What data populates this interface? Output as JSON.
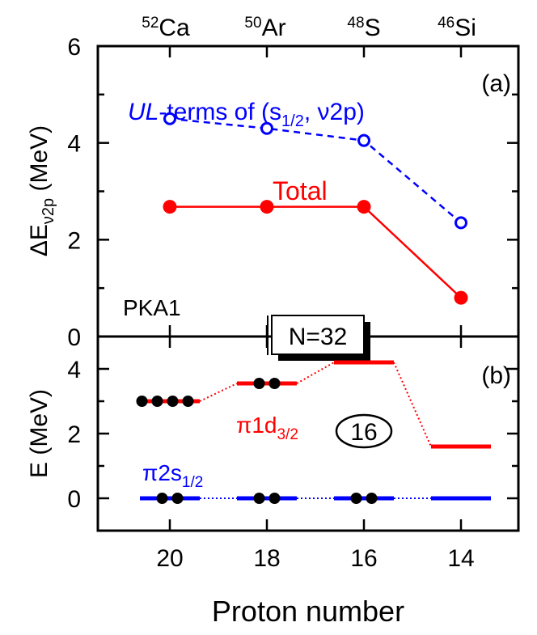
{
  "chart_data": [
    {
      "panel": "(a)",
      "type": "line",
      "x": [
        20,
        18,
        16,
        14
      ],
      "ylabel": {
        "main": "ΔE",
        "sub": "ν2p",
        "unit": " (MeV)"
      },
      "ylim": [
        0,
        6
      ],
      "yticks": [
        "0",
        "2",
        "4",
        "6"
      ],
      "top_tick_labels": [
        {
          "sup": "52",
          "name": "Ca"
        },
        {
          "sup": "50",
          "name": "Ar"
        },
        {
          "sup": "48",
          "name": "S"
        },
        {
          "sup": "46",
          "name": "Si"
        }
      ],
      "series": [
        {
          "name_parts": {
            "italic": "UL",
            "rest": "-terms of (s",
            "sub": "1/2",
            "tail": ", ν2p)"
          },
          "x": [
            20,
            18,
            16,
            14
          ],
          "y": [
            4.5,
            4.3,
            4.05,
            2.35
          ],
          "color": "#0000ff",
          "style": "dashed",
          "marker": "open-circle"
        },
        {
          "name": "Total",
          "x": [
            20,
            18,
            16,
            14
          ],
          "y": [
            2.68,
            2.68,
            2.68,
            0.8
          ],
          "color": "#ff0000",
          "style": "solid",
          "marker": "filled-circle"
        }
      ],
      "annotations": {
        "model": "PKA1",
        "shell": "N=32"
      }
    },
    {
      "panel": "(b)",
      "type": "line",
      "ylabel": {
        "main": "E",
        "unit": " (MeV)"
      },
      "ylim": [
        -1,
        5
      ],
      "yticks": [
        "0",
        "2",
        "4"
      ],
      "xlabel": "Proton number",
      "xticks": [
        "20",
        "18",
        "16",
        "14"
      ],
      "series": [
        {
          "name_parts": {
            "main": "π1d",
            "sub": "3/2"
          },
          "x": [
            20,
            18,
            16,
            14
          ],
          "y": [
            3.0,
            3.55,
            4.2,
            1.6
          ],
          "occupancy": [
            4,
            2,
            0,
            0
          ],
          "color": "#ff0000"
        },
        {
          "name_parts": {
            "main": "π2s",
            "sub": "1/2"
          },
          "x": [
            20,
            18,
            16,
            14
          ],
          "y": [
            0,
            0,
            0,
            0
          ],
          "occupancy": [
            2,
            2,
            2,
            0
          ],
          "color": "#0000ff"
        }
      ],
      "annotations": {
        "magic": "16"
      }
    }
  ]
}
